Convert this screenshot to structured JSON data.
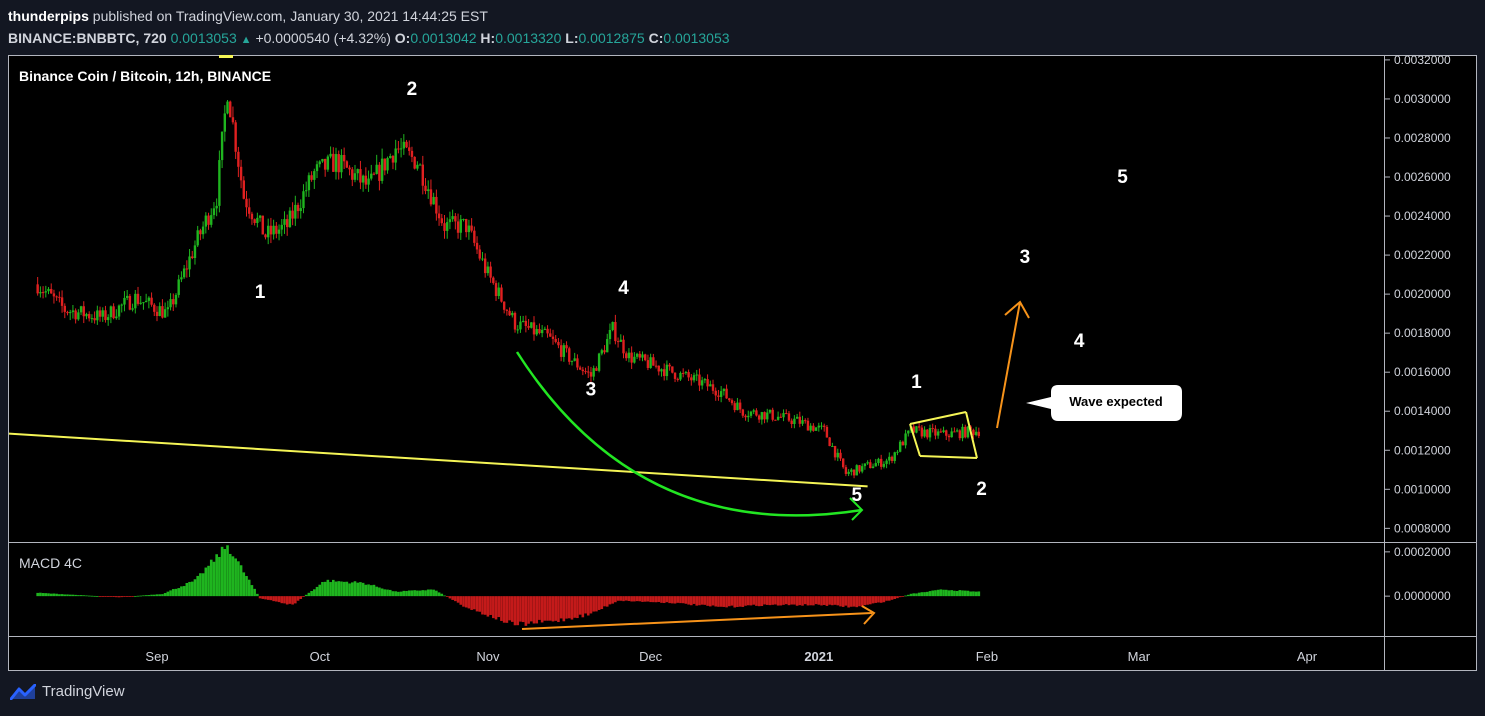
{
  "header": {
    "author": "thunderpips",
    "published": "published on TradingView.com, January 30, 2021 14:44:25 EST",
    "symbol": "BINANCE:BNBBTC, 720",
    "last": "0.0013053",
    "change": "+0.0000540 (+4.32%)",
    "o_label": "O:",
    "o": "0.0013042",
    "h_label": "H:",
    "h": "0.0013320",
    "l_label": "L:",
    "l": "0.0012875",
    "c_label": "C:",
    "c": "0.0013053"
  },
  "footer": {
    "brand": "TradingView",
    "logo_icon": "tradingview-logo-icon"
  },
  "colors": {
    "background": "#131722",
    "pane": "#000000",
    "up": "#26a69a",
    "candle_up": "#1fb51f",
    "candle_down": "#e02020",
    "trendline": "#f5f556",
    "curve": "#22e622",
    "arrow": "#f7931a"
  },
  "chart_data": {
    "type": "candlestick",
    "title": "Binance Coin / Bitcoin, 12h, BINANCE",
    "y_ticks": [
      "0.0032000",
      "0.0030000",
      "0.0028000",
      "0.0026000",
      "0.0024000",
      "0.0022000",
      "0.0020000",
      "0.0018000",
      "0.0016000",
      "0.0014000",
      "0.0012000",
      "0.0010000",
      "0.0008000"
    ],
    "ylim": [
      0.00073,
      0.00322
    ],
    "x_ticks": [
      "Sep",
      "Oct",
      "Nov",
      "Dec",
      "2021",
      "Feb",
      "Mar",
      "Apr"
    ],
    "price_anchors": [
      [
        "2020-08-10",
        0.00205
      ],
      [
        "2020-08-15",
        0.00192
      ],
      [
        "2020-08-22",
        0.00188
      ],
      [
        "2020-08-28",
        0.00198
      ],
      [
        "2020-09-03",
        0.0019
      ],
      [
        "2020-09-08",
        0.00225
      ],
      [
        "2020-09-12",
        0.0025
      ],
      [
        "2020-09-14",
        0.00305
      ],
      [
        "2020-09-17",
        0.0025
      ],
      [
        "2020-09-21",
        0.0023
      ],
      [
        "2020-09-25",
        0.00235
      ],
      [
        "2020-09-30",
        0.00262
      ],
      [
        "2020-10-04",
        0.00268
      ],
      [
        "2020-10-10",
        0.00255
      ],
      [
        "2020-10-15",
        0.00275
      ],
      [
        "2020-10-19",
        0.00268
      ],
      [
        "2020-10-24",
        0.00235
      ],
      [
        "2020-10-28",
        0.00235
      ],
      [
        "2020-11-01",
        0.0021
      ],
      [
        "2020-11-06",
        0.00185
      ],
      [
        "2020-11-12",
        0.00178
      ],
      [
        "2020-11-17",
        0.00165
      ],
      [
        "2020-11-20",
        0.00158
      ],
      [
        "2020-11-24",
        0.00182
      ],
      [
        "2020-11-27",
        0.00168
      ],
      [
        "2020-12-03",
        0.00162
      ],
      [
        "2020-12-10",
        0.00155
      ],
      [
        "2020-12-14",
        0.0015
      ],
      [
        "2020-12-18",
        0.0014
      ],
      [
        "2020-12-23",
        0.00138
      ],
      [
        "2020-12-28",
        0.00135
      ],
      [
        "2021-01-02",
        0.0013
      ],
      [
        "2021-01-06",
        0.00108
      ],
      [
        "2021-01-10",
        0.00112
      ],
      [
        "2021-01-14",
        0.00115
      ],
      [
        "2021-01-18",
        0.0013
      ],
      [
        "2021-01-24",
        0.00128
      ],
      [
        "2021-01-30",
        0.0013
      ]
    ],
    "indicator": {
      "name": "MACD 4C",
      "y_ticks": [
        "0.0002000",
        "0.0000000"
      ],
      "ylim": [
        -0.00018,
        0.00024
      ],
      "anchors": [
        [
          "2020-08-10",
          1.5e-05
        ],
        [
          "2020-08-25",
          -5e-06
        ],
        [
          "2020-09-02",
          1e-05
        ],
        [
          "2020-09-08",
          7e-05
        ],
        [
          "2020-09-14",
          0.00023
        ],
        [
          "2020-09-20",
          -1e-05
        ],
        [
          "2020-09-26",
          -4e-05
        ],
        [
          "2020-10-02",
          7e-05
        ],
        [
          "2020-10-09",
          6e-05
        ],
        [
          "2020-10-15",
          2e-05
        ],
        [
          "2020-10-22",
          3e-05
        ],
        [
          "2020-10-28",
          -5e-05
        ],
        [
          "2020-11-06",
          -0.00013
        ],
        [
          "2020-11-14",
          -0.00011
        ],
        [
          "2020-11-20",
          -8e-05
        ],
        [
          "2020-11-25",
          -2e-05
        ],
        [
          "2020-12-05",
          -3e-05
        ],
        [
          "2020-12-14",
          -5e-05
        ],
        [
          "2020-12-22",
          -4e-05
        ],
        [
          "2021-01-02",
          -4e-05
        ],
        [
          "2021-01-08",
          -5e-05
        ],
        [
          "2021-01-14",
          -2e-05
        ],
        [
          "2021-01-18",
          1e-05
        ],
        [
          "2021-01-24",
          3e-05
        ],
        [
          "2021-01-30",
          2e-05
        ]
      ]
    },
    "annotations": [
      {
        "text": "1",
        "x": "2020-09-20",
        "y": 0.00198
      },
      {
        "text": "2",
        "x": "2020-10-18",
        "y": 0.00302
      },
      {
        "text": "3",
        "x": "2020-11-20",
        "y": 0.00148
      },
      {
        "text": "4",
        "x": "2020-11-26",
        "y": 0.002
      },
      {
        "text": "5",
        "x": "2021-01-08",
        "y": 0.00094
      },
      {
        "text": "1",
        "x": "2021-01-19",
        "y": 0.00152
      },
      {
        "text": "2",
        "x": "2021-01-31",
        "y": 0.00097
      },
      {
        "text": "3",
        "x": "2021-02-08",
        "y": 0.00216
      },
      {
        "text": "4",
        "x": "2021-02-18",
        "y": 0.00173
      },
      {
        "text": "5",
        "x": "2021-02-26",
        "y": 0.00257
      }
    ],
    "callout": "Wave expected"
  }
}
